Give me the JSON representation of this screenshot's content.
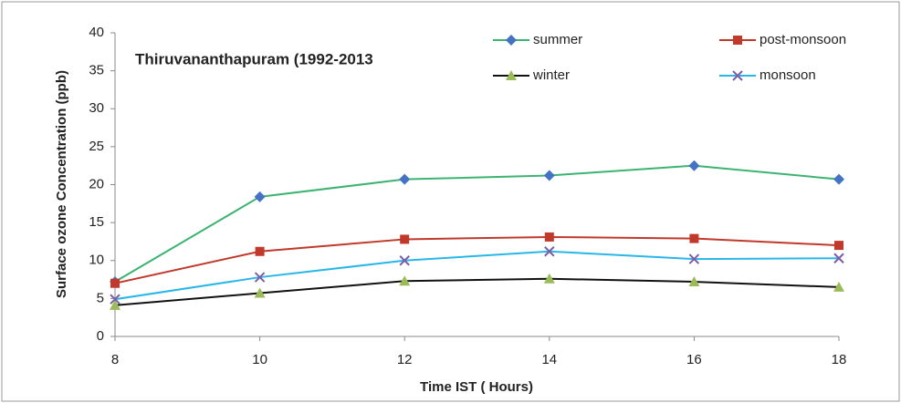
{
  "chart_data": {
    "type": "line",
    "title": "Thiruvananthapuram  (1992-2013",
    "xlabel": "Time IST ( Hours)",
    "ylabel": "Surface ozone Concentration (ppb)",
    "x": [
      8,
      10,
      12,
      14,
      16,
      18
    ],
    "xlim": [
      8,
      18
    ],
    "xticks": [
      8,
      10,
      12,
      14,
      16,
      18
    ],
    "ylim": [
      0,
      40
    ],
    "yticks": [
      0,
      5,
      10,
      15,
      20,
      25,
      30,
      35,
      40
    ],
    "grid": false,
    "series": [
      {
        "name": "summer",
        "color": "#3cb371",
        "marker": "diamond",
        "marker_color": "#4472c4",
        "values": [
          7.2,
          18.4,
          20.7,
          21.2,
          22.5,
          20.7
        ]
      },
      {
        "name": "post-monsoon",
        "color": "#c0392b",
        "marker": "square",
        "marker_color": "#c0392b",
        "values": [
          7.0,
          11.2,
          12.8,
          13.1,
          12.9,
          12.0
        ]
      },
      {
        "name": "winter",
        "color": "#111111",
        "marker": "triangle",
        "marker_color": "#9bbb59",
        "values": [
          4.1,
          5.7,
          7.3,
          7.6,
          7.2,
          6.5
        ]
      },
      {
        "name": "monsoon",
        "color": "#29b6e8",
        "marker": "x",
        "marker_color": "#7b5ea7",
        "values": [
          4.9,
          7.8,
          10.0,
          11.2,
          10.2,
          10.3
        ]
      }
    ]
  }
}
